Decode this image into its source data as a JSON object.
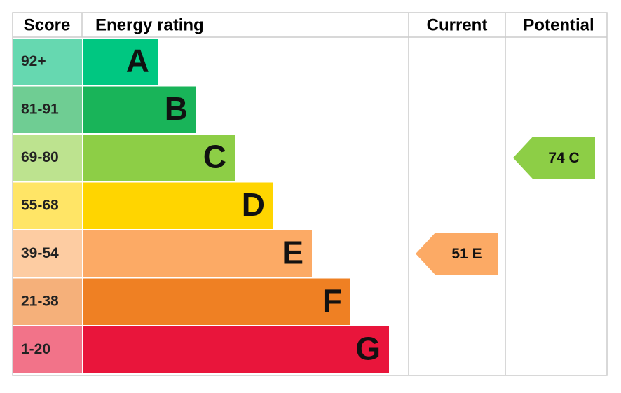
{
  "header": {
    "score": "Score",
    "rating": "Energy rating",
    "current": "Current",
    "potential": "Potential"
  },
  "bands": [
    {
      "score": "92+",
      "letter": "A",
      "color": "#00c781",
      "light": "#66d8b0"
    },
    {
      "score": "81-91",
      "letter": "B",
      "color": "#19b459",
      "light": "#6fcd93"
    },
    {
      "score": "69-80",
      "letter": "C",
      "color": "#8dce46",
      "light": "#bde38f"
    },
    {
      "score": "55-68",
      "letter": "D",
      "color": "#ffd500",
      "light": "#ffe566"
    },
    {
      "score": "39-54",
      "letter": "E",
      "color": "#fcaa65",
      "light": "#fdcca2"
    },
    {
      "score": "21-38",
      "letter": "F",
      "color": "#ef8023",
      "light": "#f5b07a"
    },
    {
      "score": "1-20",
      "letter": "G",
      "color": "#e9153b",
      "light": "#f27389"
    }
  ],
  "current": {
    "label": "51 E",
    "color": "#fcaa65"
  },
  "potential": {
    "label": "74 C",
    "color": "#8dce46"
  }
}
